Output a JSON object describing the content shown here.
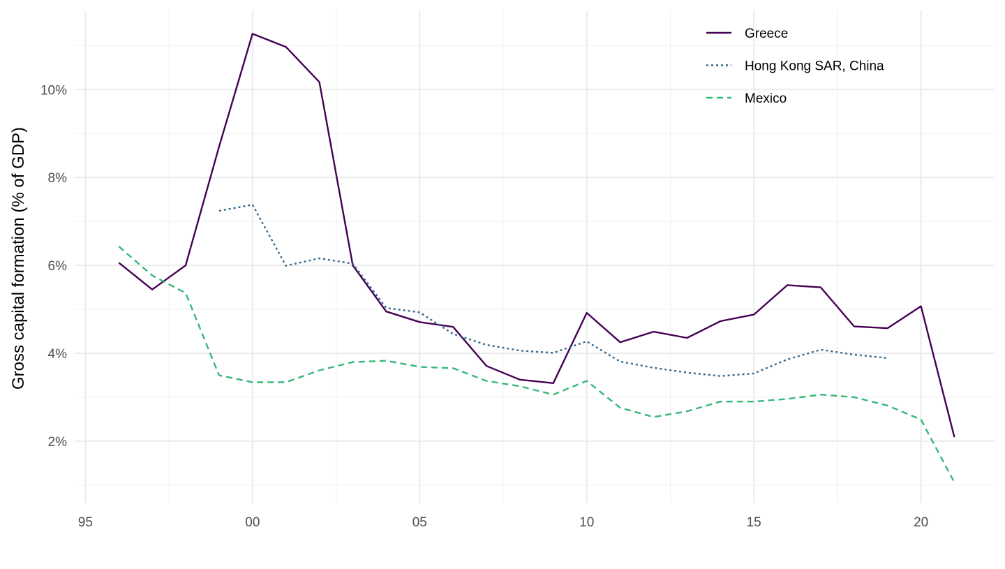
{
  "chart_data": {
    "type": "line",
    "title": "",
    "xlabel": "",
    "ylabel": "Gross capital formation (% of GDP)",
    "xlim": [
      1994.7,
      2022.2
    ],
    "ylim": [
      0.6,
      11.8
    ],
    "x_ticks": [
      1995,
      2000,
      2005,
      2010,
      2015,
      2020
    ],
    "x_tick_labels": [
      "95",
      "00",
      "05",
      "10",
      "15",
      "20"
    ],
    "y_ticks": [
      2,
      4,
      6,
      8,
      10
    ],
    "y_tick_labels": [
      "2%",
      "4%",
      "6%",
      "8%",
      "10%"
    ],
    "grid": true,
    "legend_position": "top-right",
    "series": [
      {
        "name": "Greece",
        "color": "#440154",
        "dash": "solid",
        "x": [
          1996,
          1997,
          1998,
          1999,
          2000,
          2001,
          2002,
          2003,
          2004,
          2005,
          2006,
          2007,
          2008,
          2009,
          2010,
          2011,
          2012,
          2013,
          2014,
          2015,
          2016,
          2017,
          2018,
          2019,
          2020,
          2021
        ],
        "values": [
          6.06,
          5.45,
          6.0,
          8.7,
          11.27,
          10.97,
          10.17,
          6.0,
          4.95,
          4.71,
          4.6,
          3.71,
          3.4,
          3.32,
          4.92,
          4.25,
          4.49,
          4.35,
          4.73,
          4.88,
          5.55,
          5.5,
          4.61,
          4.57,
          5.07,
          2.09
        ]
      },
      {
        "name": "Hong Kong SAR, China",
        "color": "#31688e",
        "dash": "dotted",
        "x": [
          1999,
          2000,
          2001,
          2002,
          2003,
          2004,
          2005,
          2006,
          2007,
          2008,
          2009,
          2010,
          2011,
          2012,
          2013,
          2014,
          2015,
          2016,
          2017,
          2018,
          2019
        ],
        "values": [
          7.24,
          7.38,
          5.99,
          6.16,
          6.04,
          5.03,
          4.93,
          4.44,
          4.19,
          4.06,
          4.01,
          4.27,
          3.81,
          3.67,
          3.56,
          3.48,
          3.54,
          3.86,
          4.08,
          3.97,
          3.89
        ]
      },
      {
        "name": "Mexico",
        "color": "#35b779",
        "dash": "dashed",
        "x": [
          1996,
          1997,
          1998,
          1999,
          2000,
          2001,
          2002,
          2003,
          2004,
          2005,
          2006,
          2007,
          2008,
          2009,
          2010,
          2011,
          2012,
          2013,
          2014,
          2015,
          2016,
          2017,
          2018,
          2019,
          2020,
          2021
        ],
        "values": [
          6.43,
          5.77,
          5.37,
          3.5,
          3.34,
          3.34,
          3.61,
          3.8,
          3.83,
          3.69,
          3.66,
          3.37,
          3.25,
          3.06,
          3.37,
          2.76,
          2.55,
          2.68,
          2.9,
          2.9,
          2.96,
          3.06,
          3.0,
          2.81,
          2.49,
          1.06
        ]
      }
    ]
  }
}
